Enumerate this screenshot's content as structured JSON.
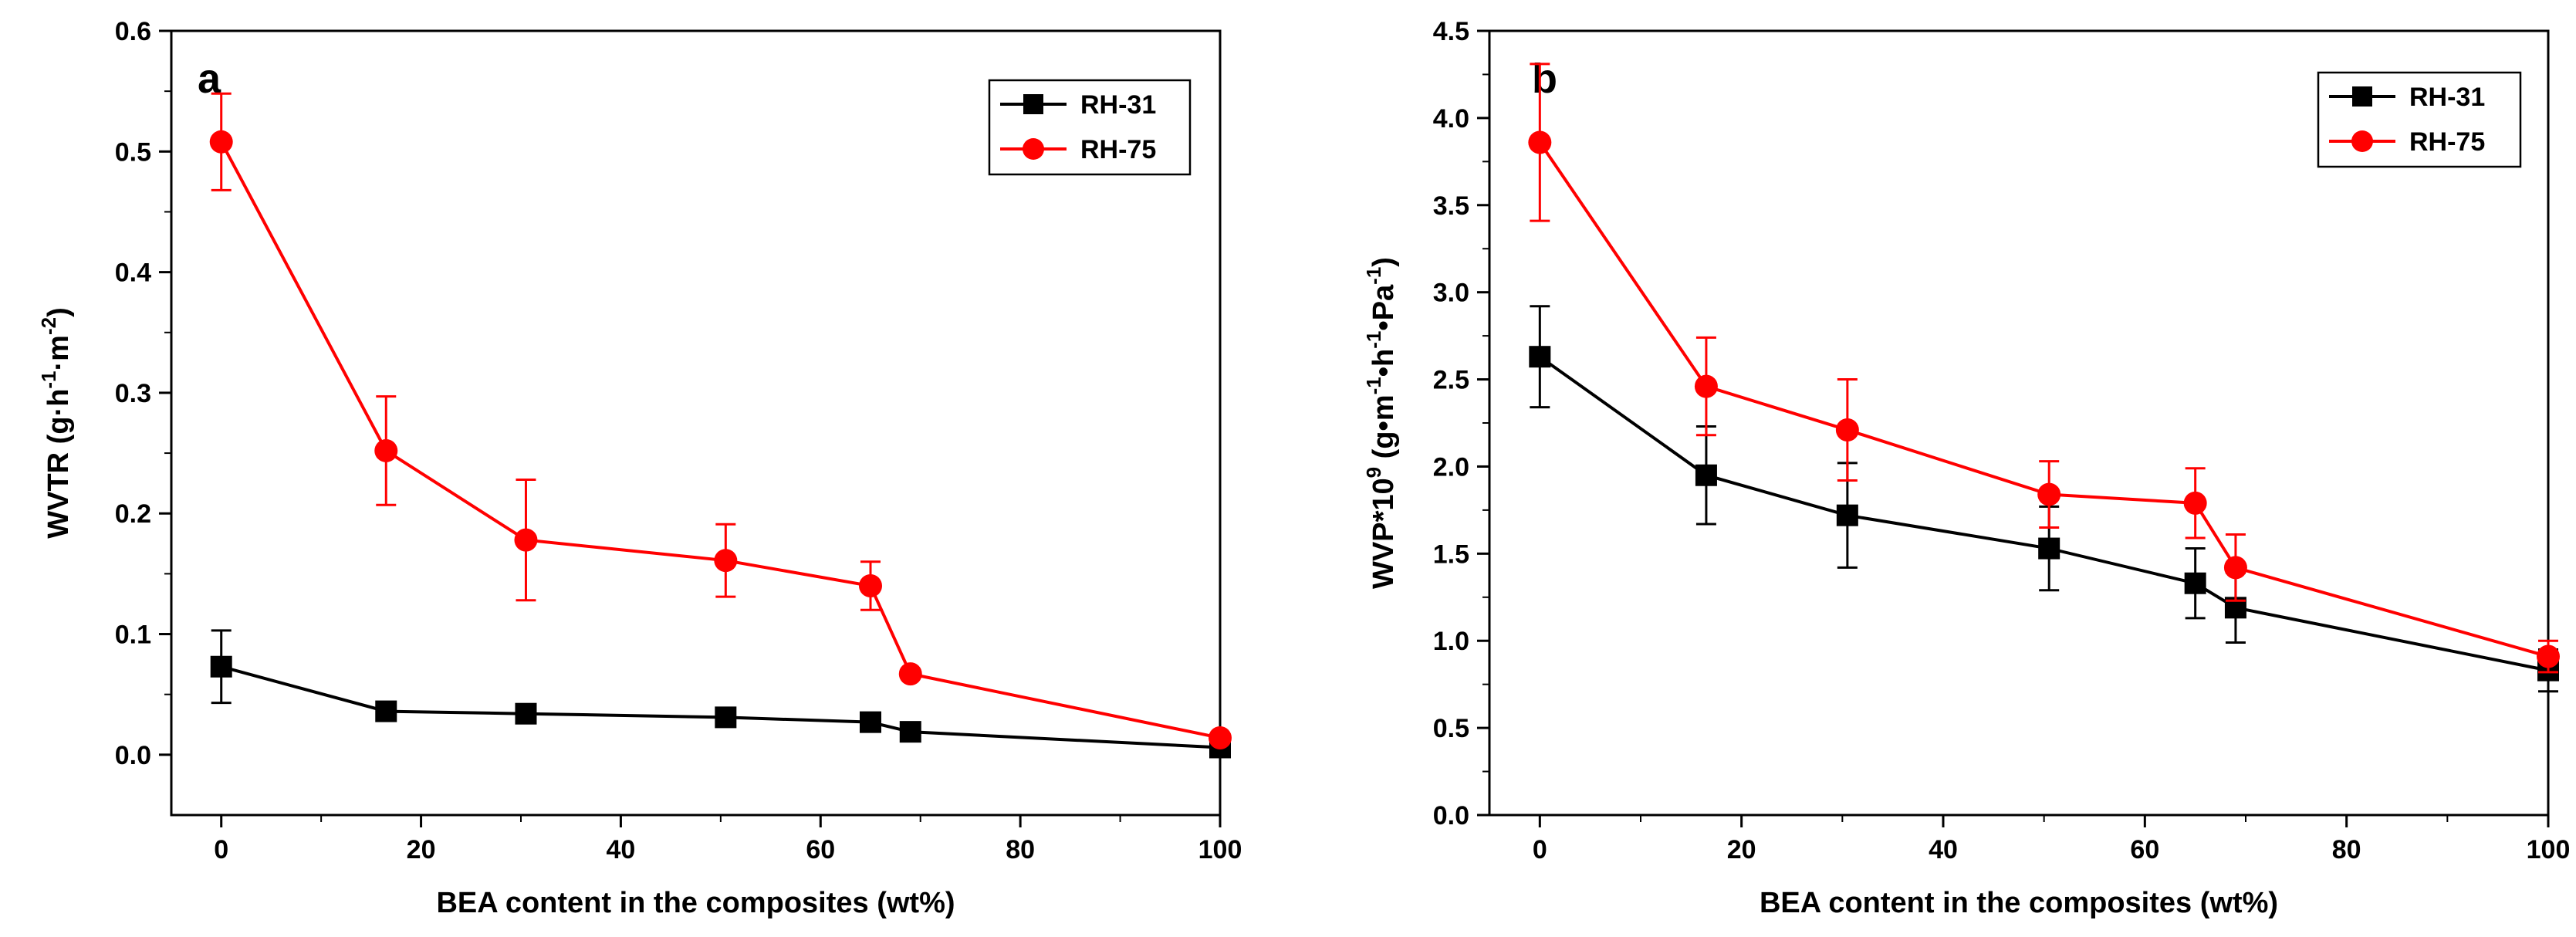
{
  "chart_data": [
    {
      "type": "line",
      "panel_label": "a",
      "xlabel": "BEA content in the composites (wt%)",
      "ylabel_parts": [
        "WVTR (g·h",
        "-1",
        "·m",
        "-2",
        ")"
      ],
      "xlim": [
        -5,
        100
      ],
      "ylim": [
        -0.05,
        0.6
      ],
      "xticks": [
        0,
        20,
        40,
        60,
        80,
        100
      ],
      "yticks": [
        0.0,
        0.1,
        0.2,
        0.3,
        0.4,
        0.5,
        0.6
      ],
      "ytick_labels": [
        "0.0",
        "0.1",
        "0.2",
        "0.3",
        "0.4",
        "0.5",
        "0.6"
      ],
      "legend_position": "top-right",
      "series": [
        {
          "name": "RH-31",
          "color": "#000000",
          "marker": "square",
          "x": [
            0,
            16.5,
            30.5,
            50.5,
            65,
            69,
            100
          ],
          "y": [
            0.073,
            0.036,
            0.034,
            0.031,
            0.027,
            0.019,
            0.006
          ],
          "err": [
            0.03,
            0.0,
            0.0,
            0.0,
            0.0,
            0.0,
            0.0
          ]
        },
        {
          "name": "RH-75",
          "color": "#ff0000",
          "marker": "circle",
          "x": [
            0,
            16.5,
            30.5,
            50.5,
            65,
            69,
            100
          ],
          "y": [
            0.508,
            0.252,
            0.178,
            0.161,
            0.14,
            0.067,
            0.014
          ],
          "err": [
            0.04,
            0.045,
            0.05,
            0.03,
            0.02,
            0.0,
            0.0
          ]
        }
      ]
    },
    {
      "type": "line",
      "panel_label": "b",
      "xlabel": "BEA content  in the composites (wt%)",
      "ylabel_parts": [
        "WVP*10",
        "9",
        " (g•m",
        "-1",
        "•h",
        "-1",
        "•Pa",
        "-1",
        ")"
      ],
      "xlim": [
        -5,
        100
      ],
      "ylim": [
        0.0,
        4.5
      ],
      "xticks": [
        0,
        20,
        40,
        60,
        80,
        100
      ],
      "yticks": [
        0.0,
        0.5,
        1.0,
        1.5,
        2.0,
        2.5,
        3.0,
        3.5,
        4.0,
        4.5
      ],
      "ytick_labels": [
        "0.0",
        "0.5",
        "1.0",
        "1.5",
        "2.0",
        "2.5",
        "3.0",
        "3.5",
        "4.0",
        "4.5"
      ],
      "legend_position": "top-right",
      "series": [
        {
          "name": "RH-31",
          "color": "#000000",
          "marker": "square",
          "x": [
            0,
            16.5,
            30.5,
            50.5,
            65,
            69,
            100
          ],
          "y": [
            2.63,
            1.95,
            1.72,
            1.53,
            1.33,
            1.19,
            0.83
          ],
          "err": [
            0.29,
            0.28,
            0.3,
            0.24,
            0.2,
            0.2,
            0.12
          ]
        },
        {
          "name": "RH-75",
          "color": "#ff0000",
          "marker": "circle",
          "x": [
            0,
            16.5,
            30.5,
            50.5,
            65,
            69,
            100
          ],
          "y": [
            3.86,
            2.46,
            2.21,
            1.84,
            1.79,
            1.42,
            0.91
          ],
          "err": [
            0.45,
            0.28,
            0.29,
            0.19,
            0.2,
            0.19,
            0.09
          ]
        }
      ]
    }
  ]
}
